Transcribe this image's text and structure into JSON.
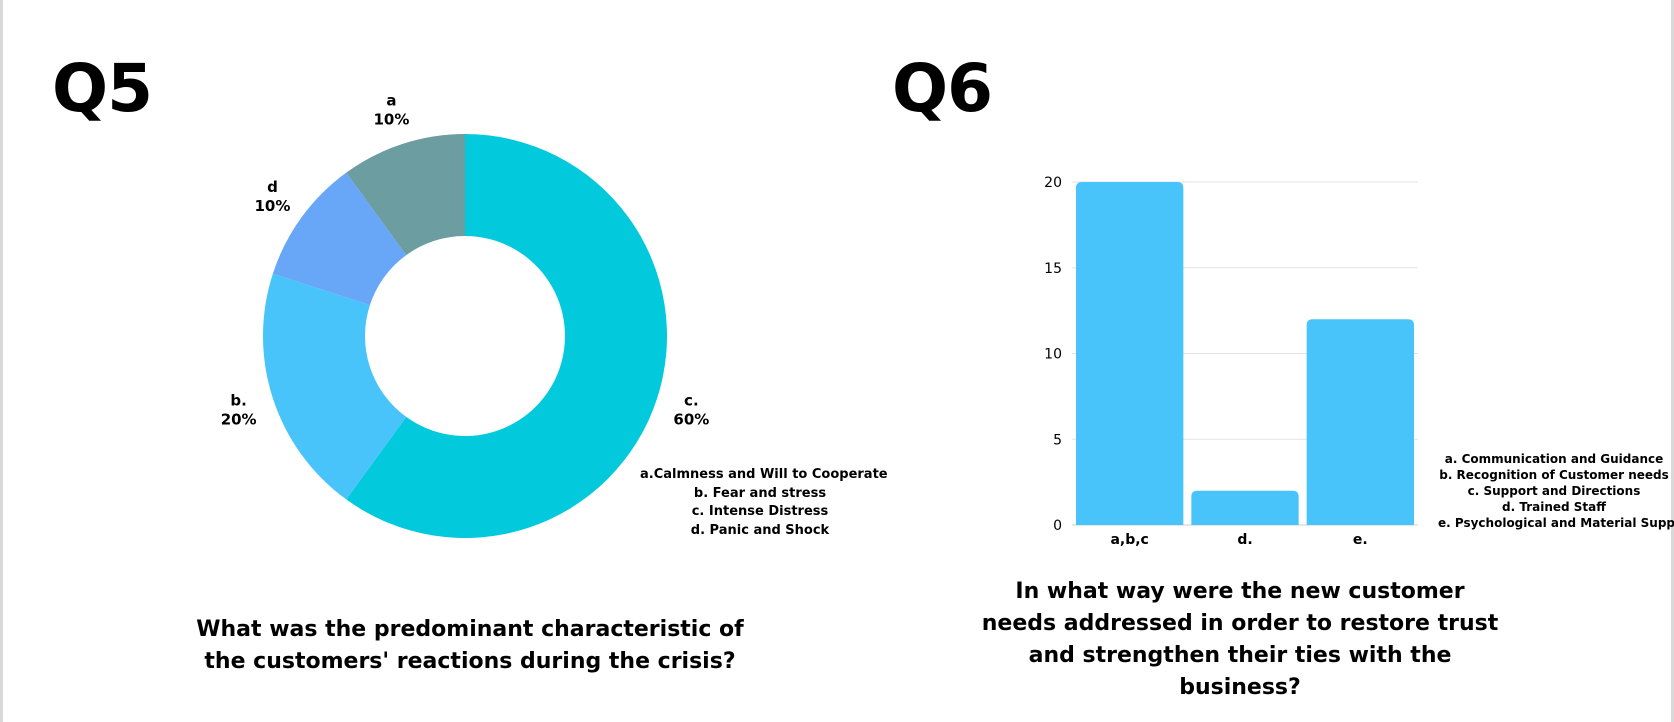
{
  "charts": [
    {
      "heading": "Q5",
      "question": "What was the predominant characteristic of the customers' reactions during the crisis?",
      "legend": [
        "a.Calmness and Will to Cooperate",
        "b. Fear and stress",
        "c. Intense Distress",
        "d. Panic and Shock"
      ]
    },
    {
      "heading": "Q6",
      "question": "In what way were the new customer needs addressed in order to restore trust and strengthen their ties with the business?",
      "legend": [
        "a. Communication and Guidance",
        "b. Recognition of Customer needs",
        "c. Support and Directions",
        "d. Trained Staff",
        "e. Psychological and Material Support"
      ]
    }
  ],
  "chart_data": [
    {
      "type": "pie",
      "title": "",
      "donut": true,
      "slices": [
        {
          "label": "c.",
          "value": 60,
          "display": "60%",
          "color": "#03c9dd"
        },
        {
          "label": "b.",
          "value": 20,
          "display": "20%",
          "color": "#48c4fb"
        },
        {
          "label": "d",
          "value": 10,
          "display": "10%",
          "color": "#68a6f8"
        },
        {
          "label": "a",
          "value": 10,
          "display": "10%",
          "color": "#6c9da0"
        }
      ]
    },
    {
      "type": "bar",
      "title": "",
      "categories": [
        "a,b,c",
        "d.",
        "e."
      ],
      "values": [
        20,
        2,
        12
      ],
      "ylim": [
        0,
        20
      ],
      "yticks": [
        0,
        5,
        10,
        15,
        20
      ],
      "grid": true,
      "color": "#48c4fb",
      "xlabel": "",
      "ylabel": ""
    }
  ]
}
